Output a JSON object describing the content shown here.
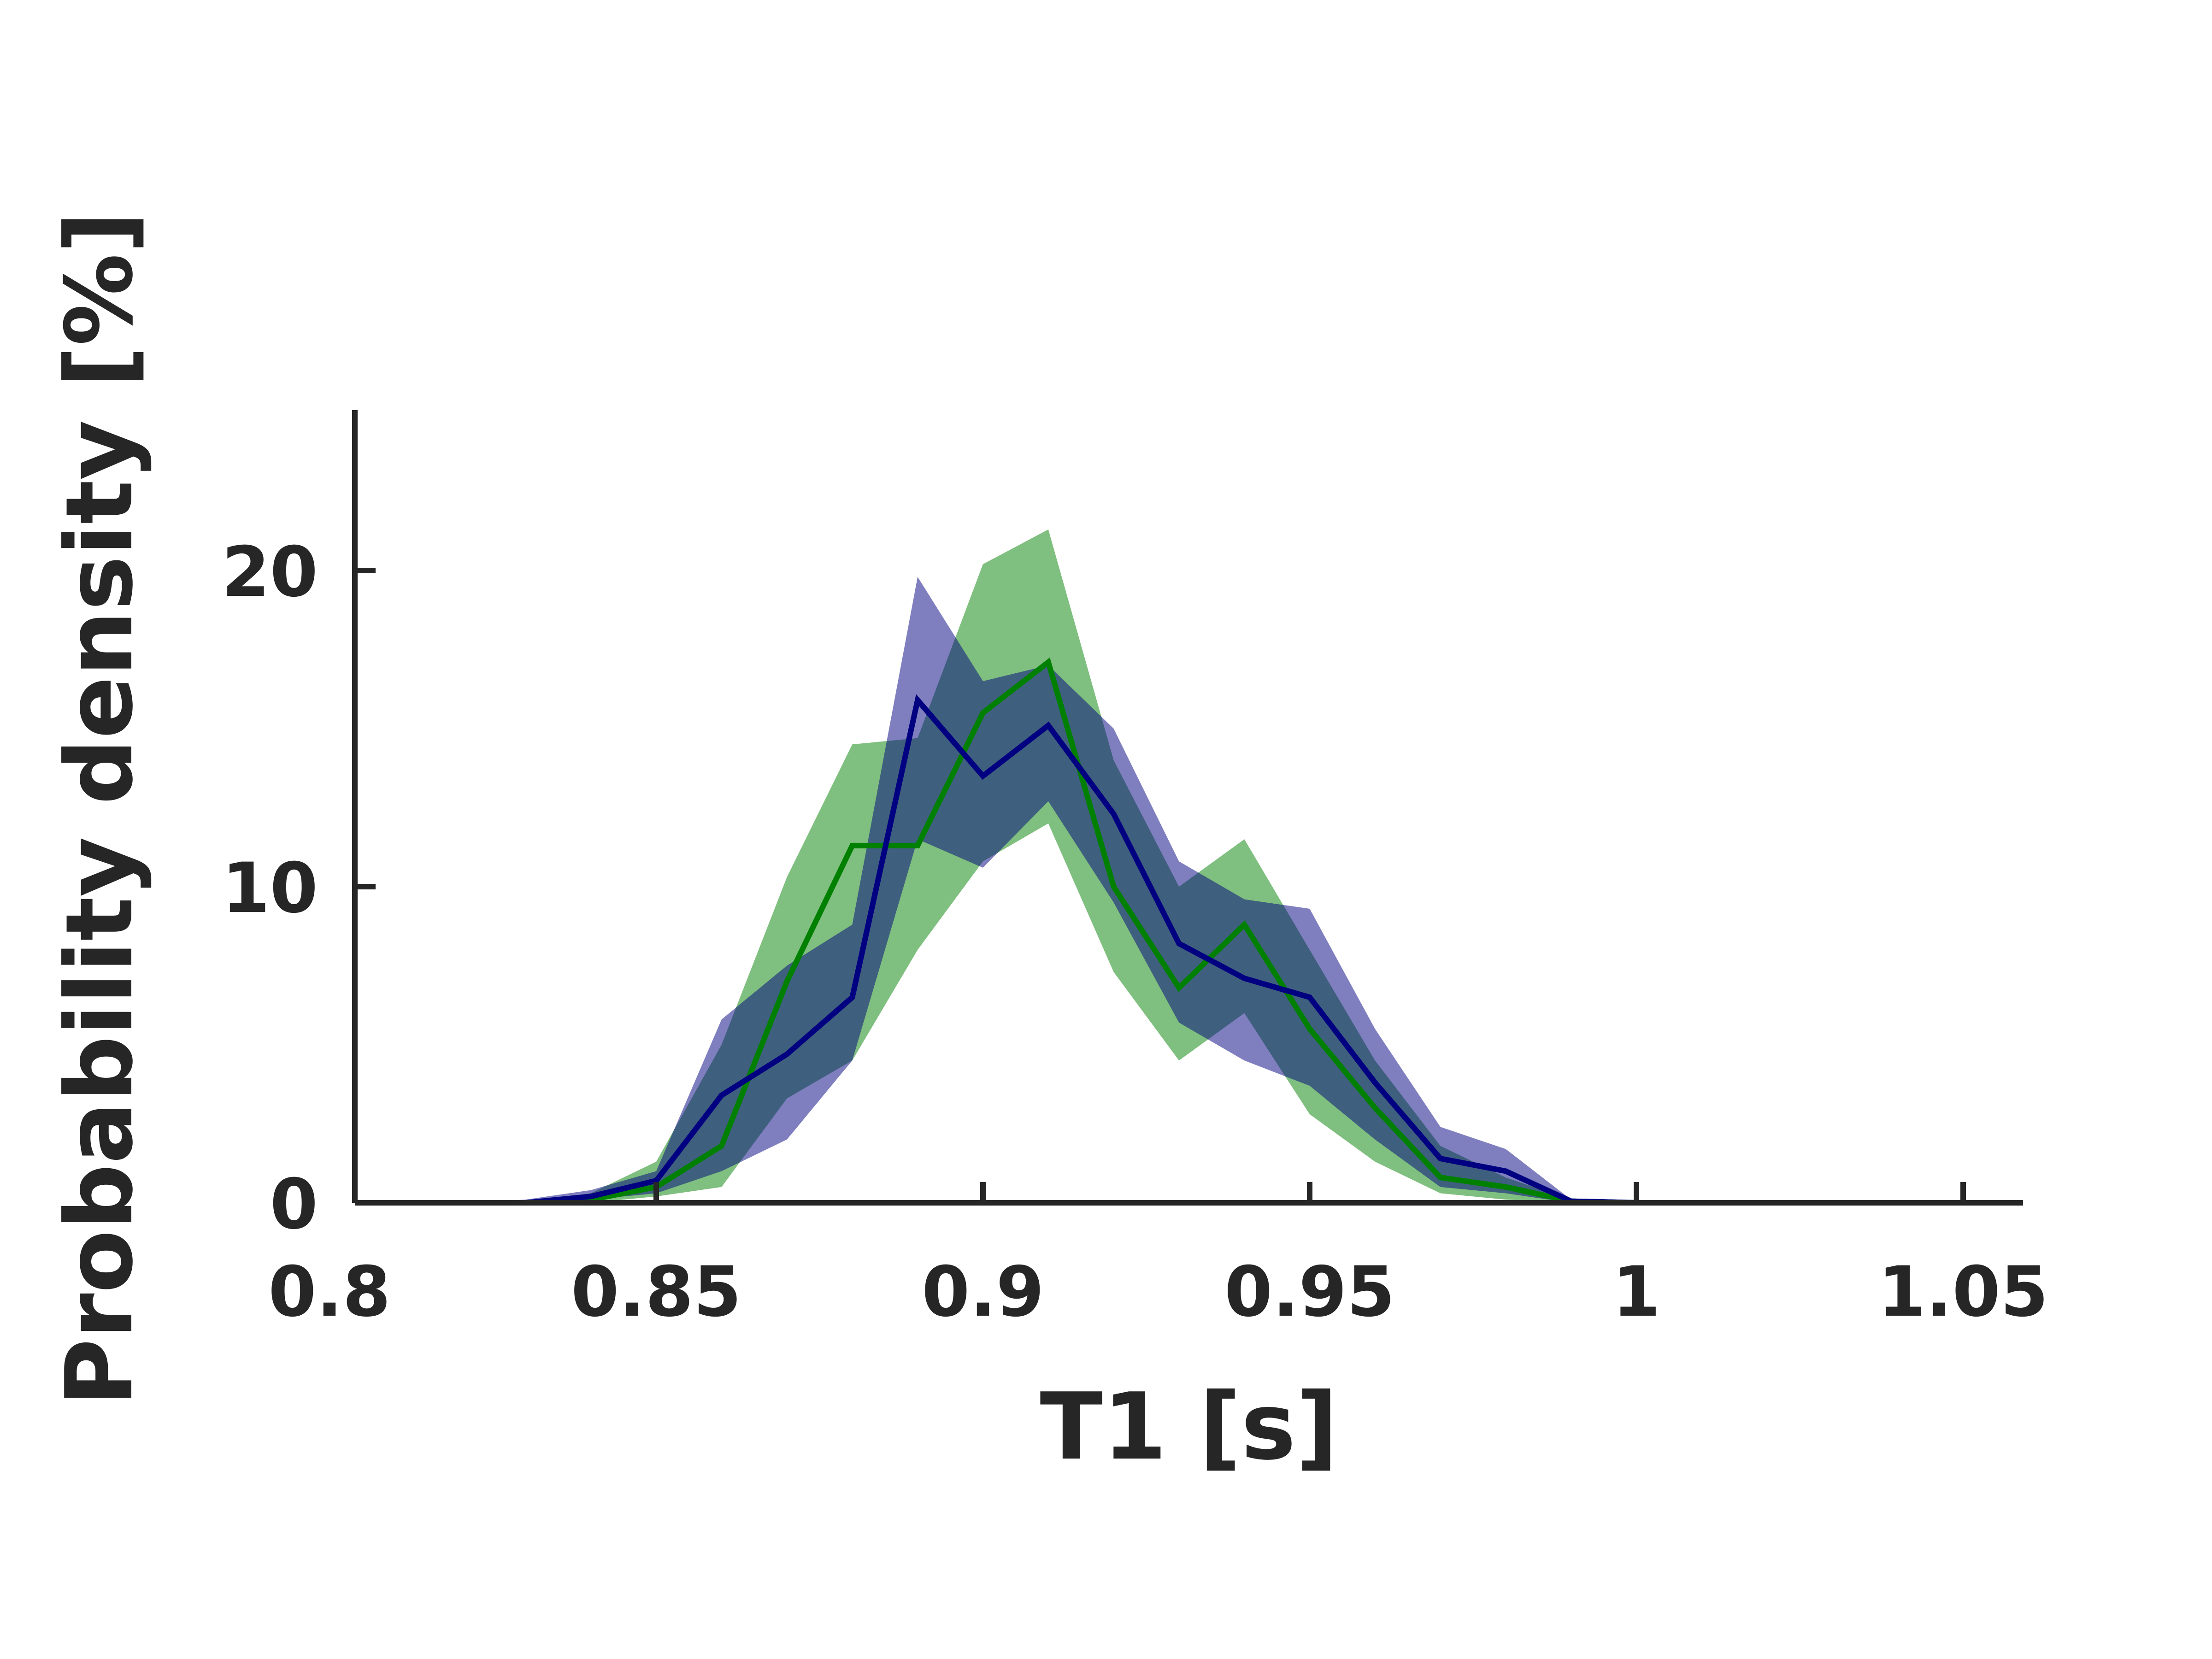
{
  "chart_data": {
    "type": "line",
    "title": "",
    "xlabel": "T1 [s]",
    "ylabel": "Probability density [%]",
    "xlim": [
      0.8,
      1.06
    ],
    "ylim": [
      0,
      25
    ],
    "xticks": [
      0.8,
      0.85,
      0.9,
      0.95,
      1,
      1.05
    ],
    "xtick_labels": [
      "0.8",
      "0.85",
      "0.9",
      "0.95",
      "1",
      "1.05"
    ],
    "yticks": [
      0,
      10,
      20
    ],
    "ytick_labels": [
      "0",
      "10",
      "20"
    ],
    "grid": false,
    "x": [
      0.81,
      0.82,
      0.83,
      0.84,
      0.85,
      0.86,
      0.87,
      0.88,
      0.89,
      0.9,
      0.91,
      0.92,
      0.93,
      0.94,
      0.95,
      0.96,
      0.97,
      0.98,
      0.99,
      1.0,
      1.01,
      1.02,
      1.03,
      1.04,
      1.05
    ],
    "series": [
      {
        "color": "#008000",
        "band_color": "#008000",
        "values": [
          0,
          0,
          0,
          0.1,
          0.5,
          1.8,
          7.0,
          11.3,
          11.3,
          15.5,
          17.1,
          10.0,
          6.8,
          8.8,
          5.5,
          3.0,
          0.8,
          0.5,
          0.05,
          0,
          0,
          0,
          0,
          0,
          0
        ],
        "band_low": [
          0,
          0,
          0,
          0,
          0.2,
          0.5,
          3.3,
          4.5,
          8.0,
          10.8,
          12.0,
          7.3,
          4.5,
          6.0,
          2.8,
          1.3,
          0.3,
          0.1,
          0,
          0,
          0,
          0,
          0,
          0,
          0
        ],
        "band_high": [
          0,
          0,
          0,
          0.3,
          1.3,
          5.0,
          10.3,
          14.5,
          14.7,
          20.2,
          21.3,
          14.0,
          10.0,
          11.5,
          8.0,
          4.5,
          1.8,
          0.8,
          0.1,
          0,
          0,
          0,
          0,
          0,
          0
        ]
      },
      {
        "color": "#000080",
        "band_color": "#000080",
        "values": [
          0,
          0,
          0,
          0.2,
          0.7,
          3.4,
          4.7,
          6.5,
          15.9,
          13.5,
          15.1,
          12.3,
          8.2,
          7.1,
          6.5,
          3.8,
          1.4,
          1.0,
          0.05,
          0,
          0,
          0,
          0,
          0,
          0
        ],
        "band_low": [
          0,
          0,
          0,
          0.1,
          0.3,
          1.0,
          2.0,
          4.5,
          11.5,
          10.6,
          12.7,
          9.5,
          5.7,
          4.5,
          3.7,
          2.0,
          0.5,
          0.3,
          0,
          0,
          0,
          0,
          0,
          0,
          0
        ],
        "band_high": [
          0,
          0,
          0.1,
          0.4,
          1.0,
          5.8,
          7.5,
          8.8,
          19.8,
          16.5,
          17.0,
          15.0,
          10.8,
          9.6,
          9.3,
          5.5,
          2.4,
          1.7,
          0.1,
          0,
          0,
          0,
          0,
          0,
          0
        ]
      }
    ]
  }
}
